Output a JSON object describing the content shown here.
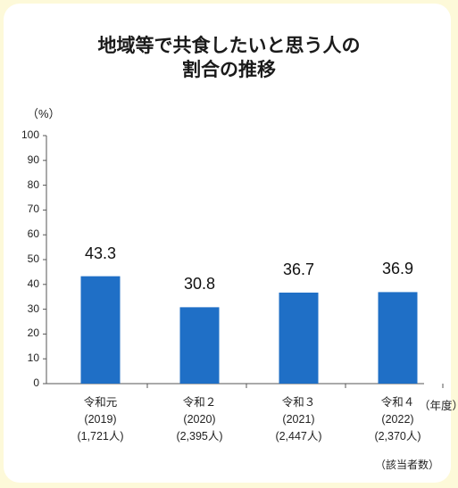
{
  "chart_data": {
    "type": "bar",
    "title_lines": [
      "地域等で共食したいと思う人の",
      "割合の推移"
    ],
    "ylabel": "（%）",
    "ylim": [
      0,
      100
    ],
    "yticks": [
      "0",
      "10",
      "20",
      "30",
      "40",
      "50",
      "60",
      "70",
      "80",
      "90",
      "100"
    ],
    "categories": [
      {
        "year": "令和元",
        "western": "(2019)",
        "count": "(1,721人)"
      },
      {
        "year": "令和２",
        "western": "(2020)",
        "count": "(2,395人)"
      },
      {
        "year": "令和３",
        "western": "(2021)",
        "count": "(2,447人)"
      },
      {
        "year": "令和４",
        "western": "(2022)",
        "count": "(2,370人)"
      }
    ],
    "values": [
      43.3,
      30.8,
      36.7,
      36.9
    ],
    "value_labels": [
      "43.3",
      "30.8",
      "36.7",
      "36.9"
    ],
    "bar_color": "#1f6fc6",
    "xaxis_suffix": "（年度）",
    "note": "（該当者数）"
  }
}
